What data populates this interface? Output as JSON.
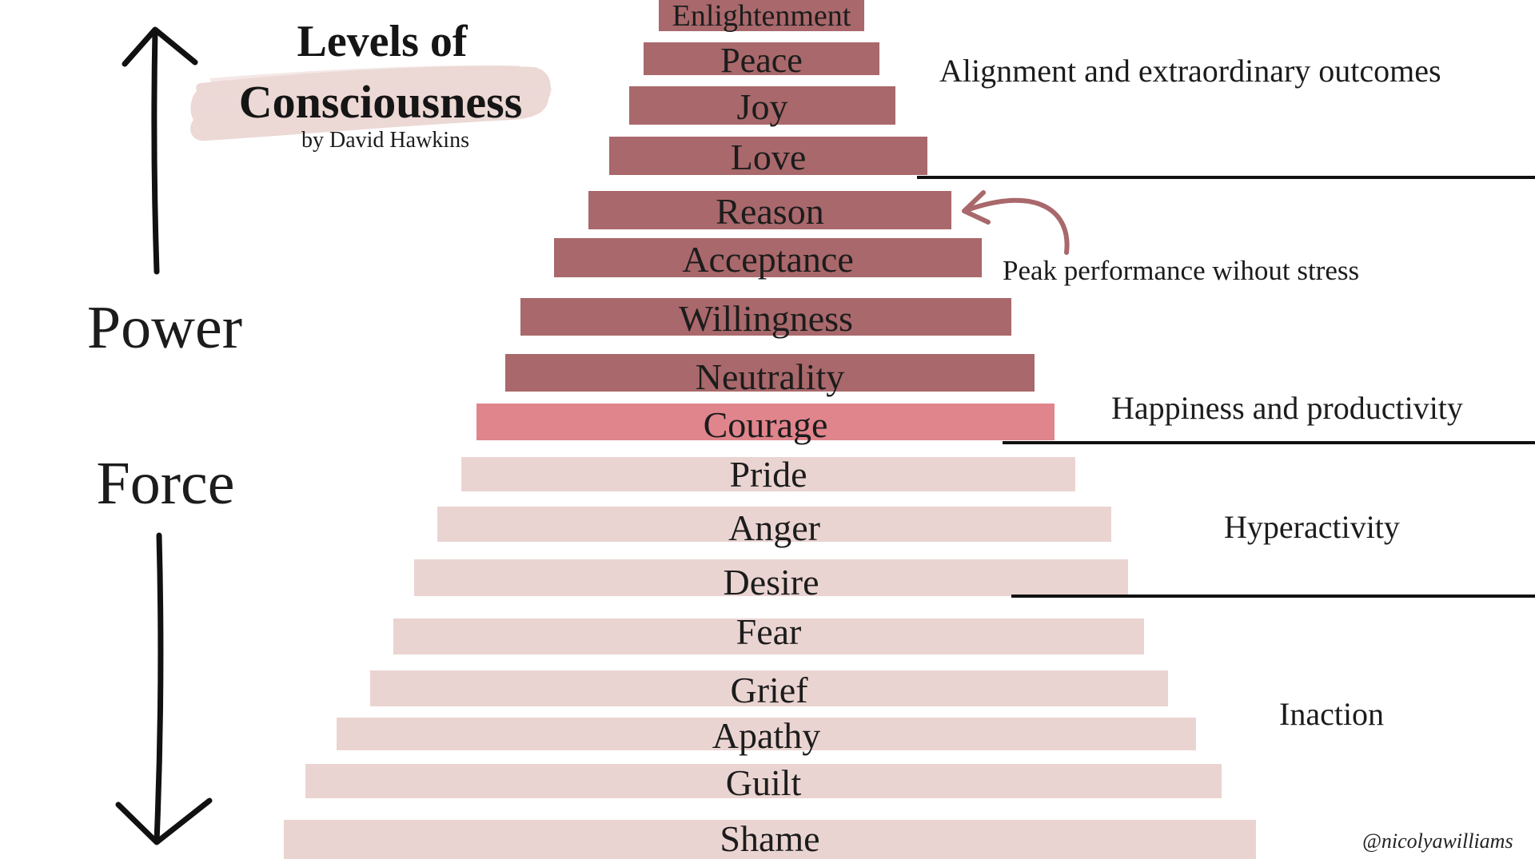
{
  "title": {
    "line1": "Levels of",
    "line2": "Consciousness",
    "byline": "by David Hawkins"
  },
  "axis_labels": {
    "upper": "Power",
    "lower": "Force"
  },
  "levels": [
    {
      "label": "Enlightenment",
      "color": "#a9686b"
    },
    {
      "label": "Peace",
      "color": "#a9686b"
    },
    {
      "label": "Joy",
      "color": "#a9686b"
    },
    {
      "label": "Love",
      "color": "#a9686b"
    },
    {
      "label": "Reason",
      "color": "#a9686b"
    },
    {
      "label": "Acceptance",
      "color": "#a9686b"
    },
    {
      "label": "Willingness",
      "color": "#a9686b"
    },
    {
      "label": "Neutrality",
      "color": "#a9686b"
    },
    {
      "label": "Courage",
      "color": "#e0858c"
    },
    {
      "label": "Pride",
      "color": "#ead4d1"
    },
    {
      "label": "Anger",
      "color": "#ead4d1"
    },
    {
      "label": "Desire",
      "color": "#ead4d1"
    },
    {
      "label": "Fear",
      "color": "#ead4d1"
    },
    {
      "label": "Grief",
      "color": "#ead4d1"
    },
    {
      "label": "Apathy",
      "color": "#ead4d1"
    },
    {
      "label": "Guilt",
      "color": "#ead4d1"
    },
    {
      "label": "Shame",
      "color": "#ead4d1"
    }
  ],
  "outcomes": [
    "Alignment and extraordinary outcomes",
    "Peak performance wihout stress",
    "Happiness and productivity",
    "Hyperactivity",
    "Inaction"
  ],
  "credit": "@nicolyawilliams",
  "icons": {
    "upper_arrow": "up-arrow-icon",
    "lower_arrow": "down-arrow-icon",
    "pointer": "curved-arrow-icon"
  },
  "colors": {
    "text": "#1c1c1c",
    "arrows": "#111111",
    "pointer_arrow": "#a9686b",
    "brush_highlight": "#ecd8d5",
    "divider": "#111111"
  }
}
